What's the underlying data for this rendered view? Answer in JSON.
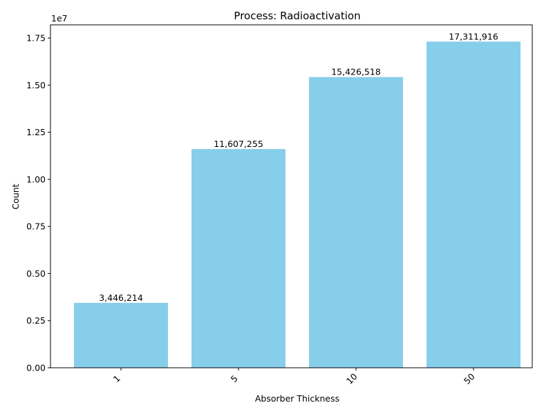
{
  "chart_data": {
    "type": "bar",
    "title": "Process: Radioactivation",
    "xlabel": "Absorber Thickness",
    "ylabel": "Count",
    "categories": [
      "1",
      "5",
      "10",
      "50"
    ],
    "values": [
      3446214,
      11607255,
      15426518,
      17311916
    ],
    "data_labels": [
      "3,446,214",
      "11,607,255",
      "15,426,518",
      "17,311,916"
    ],
    "ylim": [
      0,
      18200000
    ],
    "yticks": [
      0,
      2500000,
      5000000,
      7500000,
      10000000,
      12500000,
      15000000,
      17500000
    ],
    "ytick_labels": [
      "0.00",
      "0.25",
      "0.50",
      "0.75",
      "1.00",
      "1.25",
      "1.50",
      "1.75"
    ],
    "y_offset_label": "1e7",
    "bar_color": "#87CEEB",
    "grid": false,
    "legend": "none"
  }
}
